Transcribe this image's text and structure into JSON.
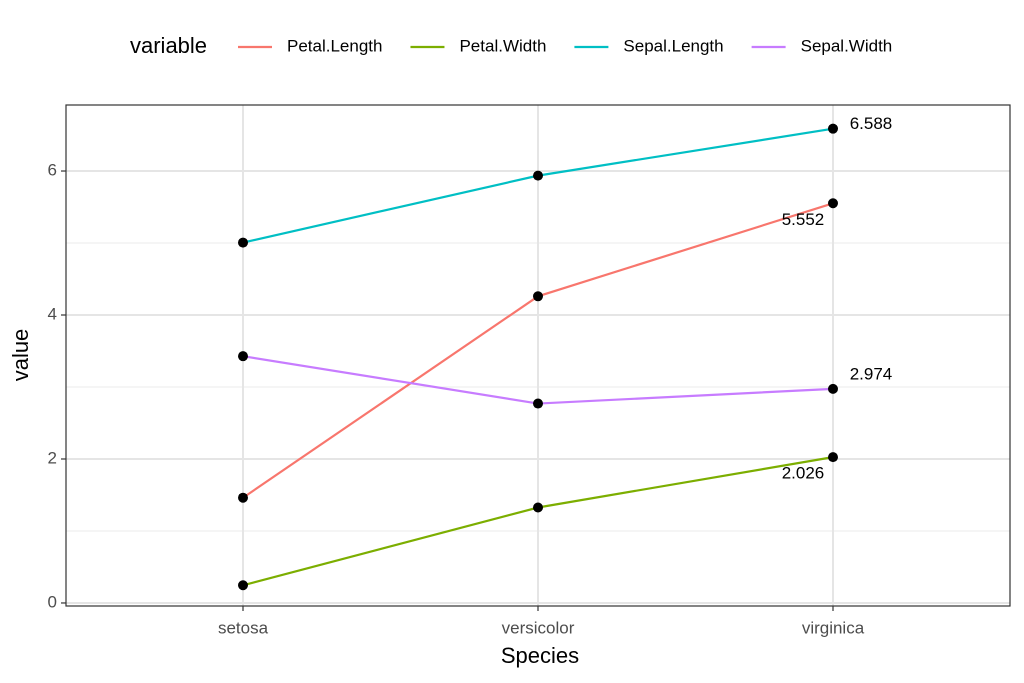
{
  "chart_data": {
    "type": "line",
    "x_label": "Species",
    "y_label": "value",
    "legend_title": "variable",
    "legend_position": "top",
    "categories": [
      "setosa",
      "versicolor",
      "virginica"
    ],
    "series": [
      {
        "name": "Petal.Length",
        "color": "#F8766D",
        "values": [
          1.462,
          4.26,
          5.552
        ]
      },
      {
        "name": "Petal.Width",
        "color": "#7CAE00",
        "values": [
          0.246,
          1.326,
          2.026
        ]
      },
      {
        "name": "Sepal.Length",
        "color": "#00BFC4",
        "values": [
          5.006,
          5.936,
          6.588
        ]
      },
      {
        "name": "Sepal.Width",
        "color": "#C77CFF",
        "values": [
          3.428,
          2.77,
          2.974
        ]
      }
    ],
    "ylim": [
      -0.042,
      6.917
    ],
    "yticks": [
      0,
      2,
      4,
      6
    ],
    "y_minor_grid": [
      1,
      3,
      5
    ],
    "grid": true
  }
}
